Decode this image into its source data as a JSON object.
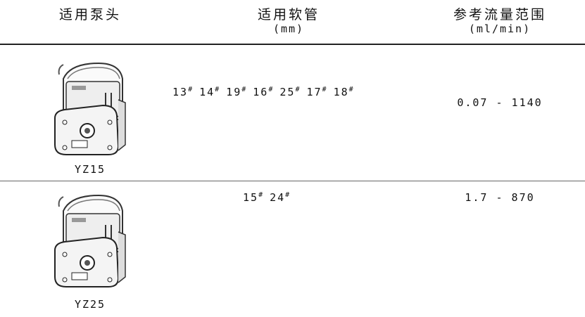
{
  "table": {
    "header": {
      "pump": "适用泵头",
      "tube": "适用软管",
      "tube_unit": "(mm)",
      "flow": "参考流量范围",
      "flow_unit": "(ml/min)"
    },
    "rows": [
      {
        "pump": "YZ15",
        "tubes": [
          {
            "size": "13",
            "mark": "#"
          },
          {
            "size": "14",
            "mark": "#"
          },
          {
            "size": "19",
            "mark": "#"
          },
          {
            "size": "16",
            "mark": "#"
          },
          {
            "size": "25",
            "mark": "#"
          },
          {
            "size": "17",
            "mark": "#"
          },
          {
            "size": "18",
            "mark": "#"
          }
        ],
        "flow": "0.07 - 1140"
      },
      {
        "pump": "YZ25",
        "tubes": [
          {
            "size": "15",
            "mark": "#"
          },
          {
            "size": "24",
            "mark": "#"
          }
        ],
        "flow": "1.7 - 870"
      }
    ]
  }
}
